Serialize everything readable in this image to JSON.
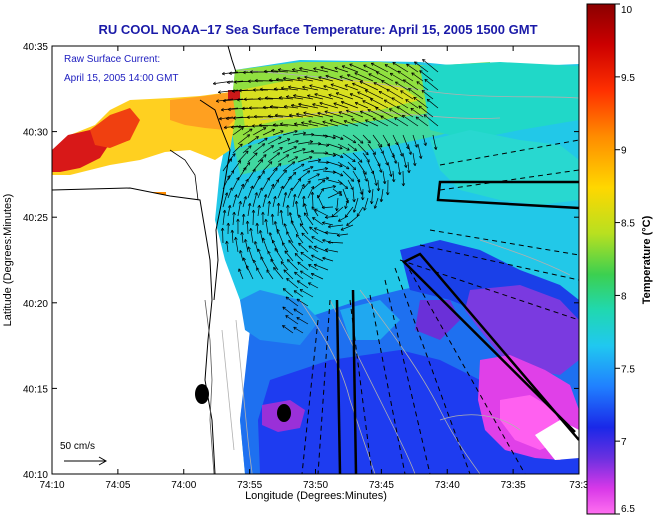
{
  "title": "RU COOL  NOAA–17  Sea Surface Temperature:  April 15, 2005 1500 GMT",
  "overlay": {
    "line1": "Raw Surface Current:",
    "line2": "April 15, 2005 14:00 GMT"
  },
  "axes": {
    "xlabel": "Longitude (Degrees:Minutes)",
    "ylabel": "Latitude (Degrees:Minutes)",
    "xticks": [
      "74:10",
      "74:05",
      "74:00",
      "73:55",
      "73:50",
      "73:45",
      "73:40",
      "73:35",
      "73:3"
    ],
    "yticks": [
      "40:35",
      "40:30",
      "40:25",
      "40:20",
      "40:15",
      "40:10"
    ]
  },
  "scale_bar": {
    "label": "50 cm/s"
  },
  "colorbar": {
    "label": "Temperature (°C)",
    "ticks": [
      "10",
      "9.5",
      "9",
      "8.5",
      "8",
      "7.5",
      "7",
      "6.5"
    ],
    "range": [
      6.5,
      10
    ]
  },
  "colors": {
    "title": "#1a1aa8",
    "overlay": "#2020c0",
    "land": "#ffffff"
  }
}
